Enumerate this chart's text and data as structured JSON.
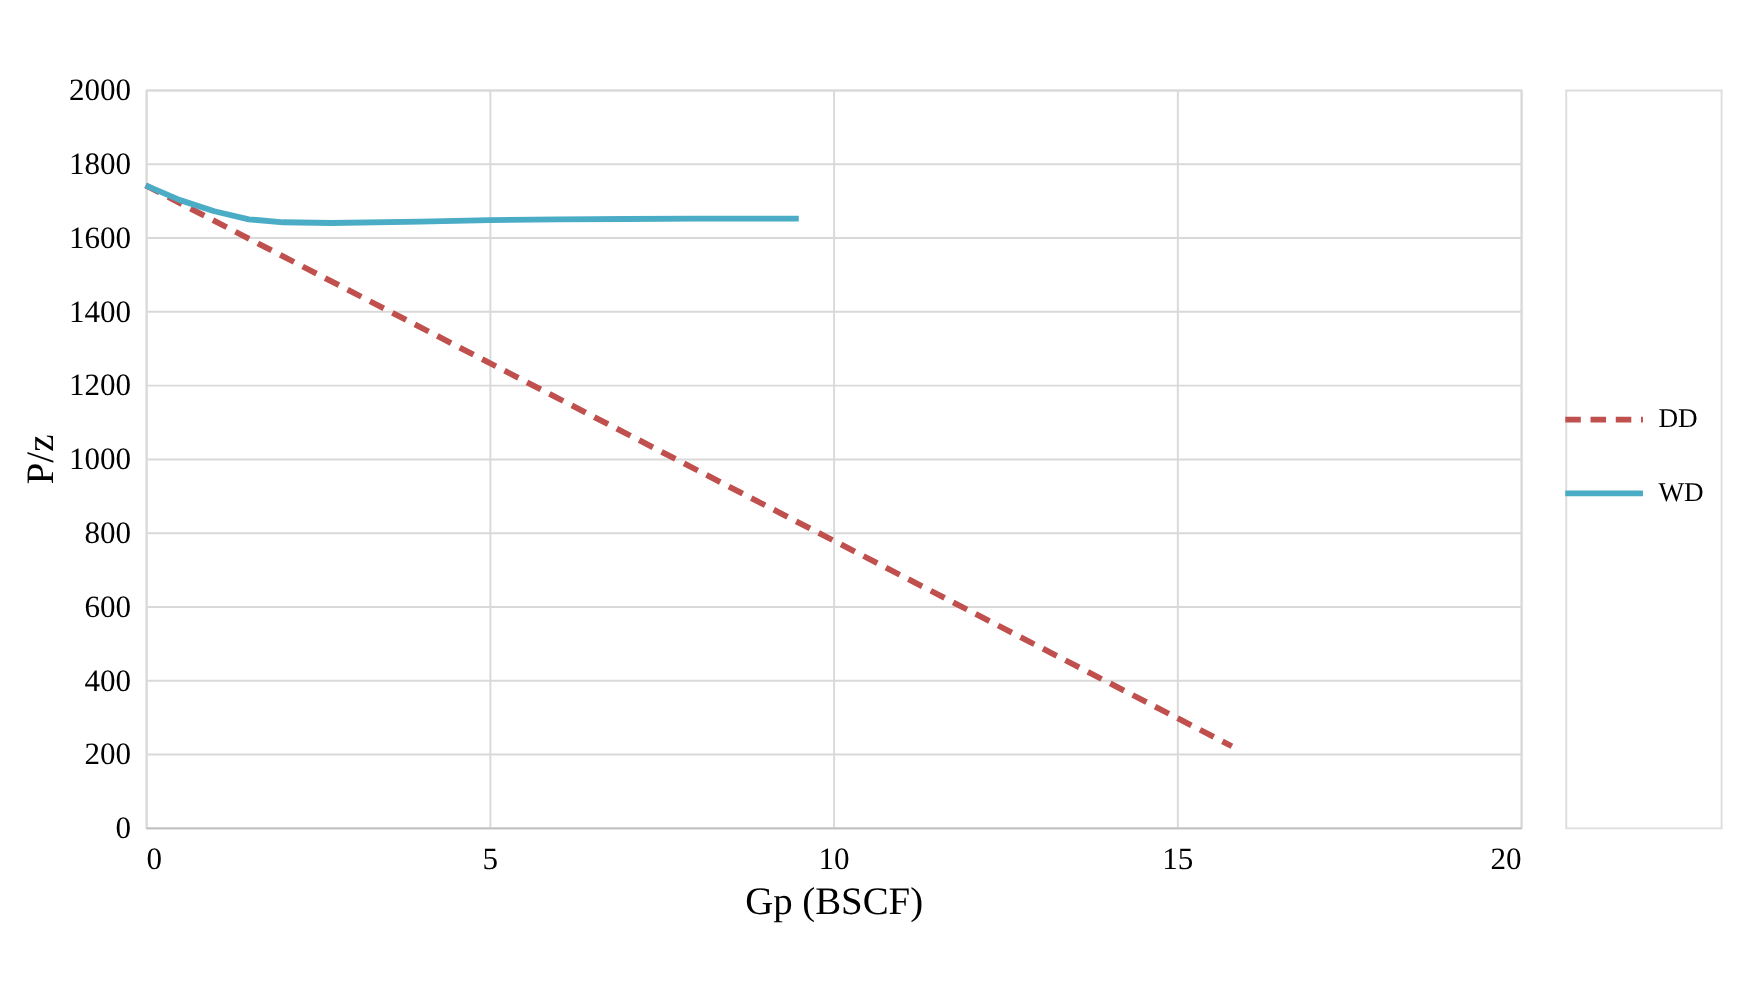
{
  "chart_data": {
    "type": "line",
    "xlabel": "Gp (BSCF)",
    "ylabel": "P/z",
    "xlim": [
      0,
      20
    ],
    "xticks": [
      0,
      5,
      10,
      15,
      20
    ],
    "ylim": [
      0,
      2000
    ],
    "yticks": [
      0,
      200,
      400,
      600,
      800,
      1000,
      1200,
      1400,
      1600,
      1800,
      2000
    ],
    "grid": true,
    "legend": "right",
    "marker": "none",
    "series": [
      {
        "name": "DD",
        "color": "#c0504d",
        "line_style": "dashed",
        "x": [
          0,
          15.8
        ],
        "values": [
          1740,
          220
        ]
      },
      {
        "name": "WD",
        "color": "#4bacc6",
        "line_style": "solid",
        "x": [
          0,
          0.5,
          1,
          1.5,
          2,
          2.7,
          4,
          5,
          6,
          7,
          8,
          9.5
        ],
        "values": [
          1740,
          1700,
          1670,
          1648,
          1640,
          1638,
          1642,
          1646,
          1648,
          1649,
          1650,
          1650
        ]
      }
    ]
  }
}
